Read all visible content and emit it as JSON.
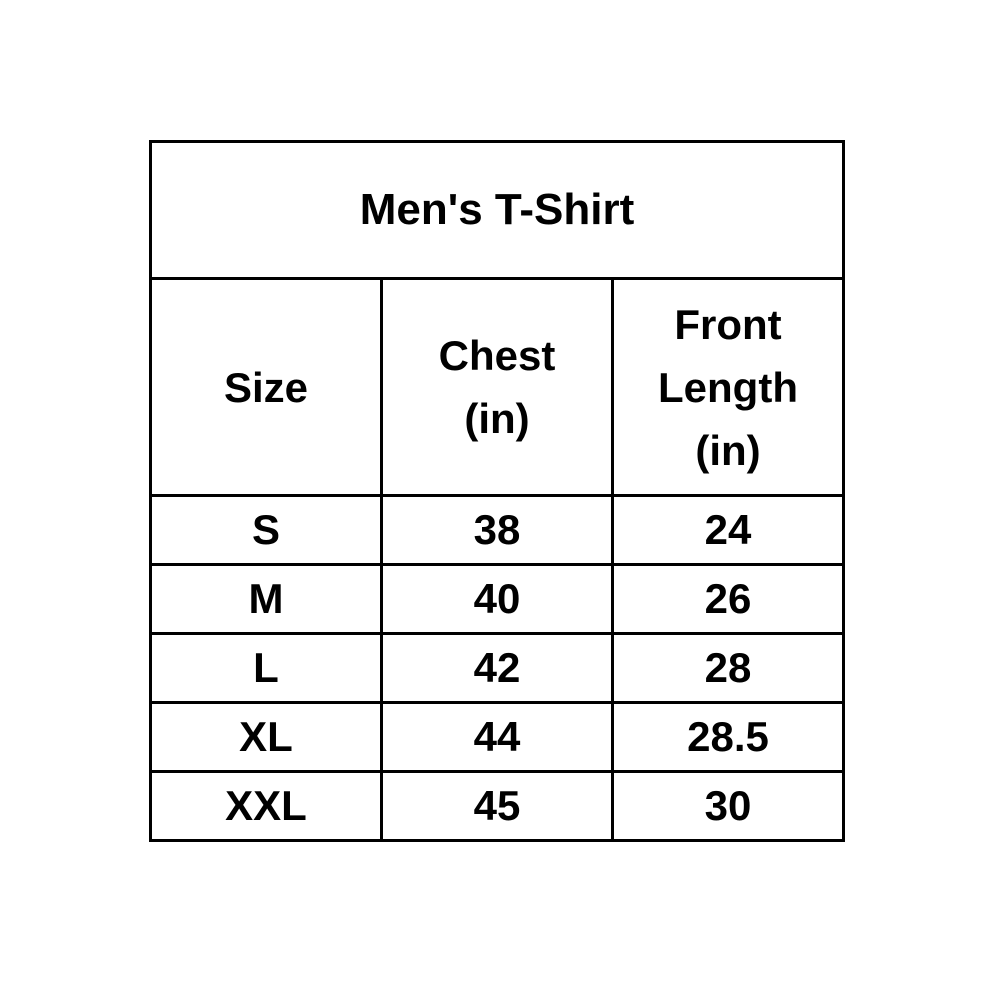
{
  "table": {
    "title": "Men's T-Shirt",
    "columns": [
      "Size",
      "Chest\n(in)",
      "Front\nLength\n(in)"
    ],
    "rows": [
      [
        "S",
        "38",
        "24"
      ],
      [
        "M",
        "40",
        "26"
      ],
      [
        "L",
        "42",
        "28"
      ],
      [
        "XL",
        "44",
        "28.5"
      ],
      [
        "XXL",
        "45",
        "30"
      ]
    ],
    "colors": {
      "border": "#000000",
      "text": "#000000",
      "background": "#ffffff"
    }
  },
  "chart_data": {
    "type": "table",
    "title": "Men's T-Shirt",
    "columns": [
      "Size",
      "Chest (in)",
      "Front Length (in)"
    ],
    "rows": [
      [
        "S",
        38,
        24
      ],
      [
        "M",
        40,
        26
      ],
      [
        "L",
        42,
        28
      ],
      [
        "XL",
        44,
        28.5
      ],
      [
        "XXL",
        45,
        30
      ]
    ]
  }
}
